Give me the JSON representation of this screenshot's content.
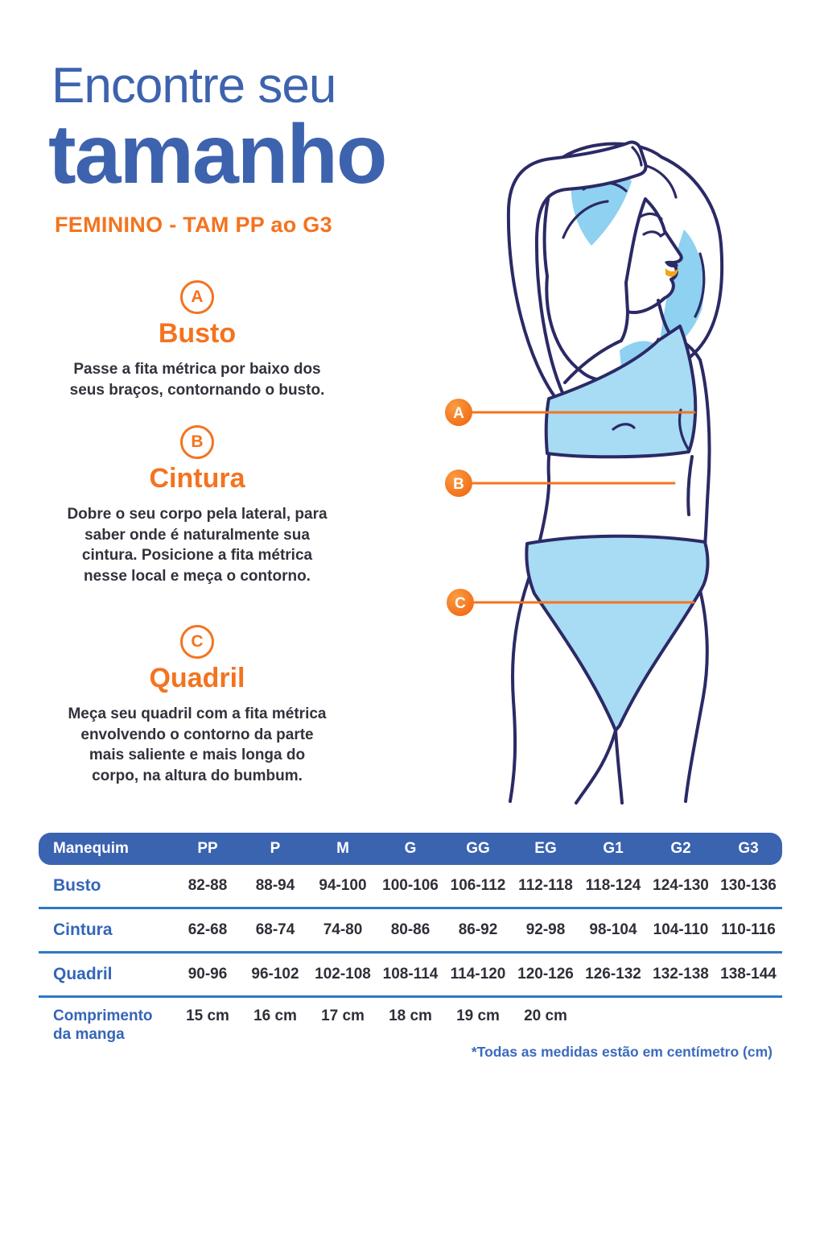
{
  "header": {
    "title_line1": "Encontre seu",
    "title_line2": "tamanho",
    "subtitle": "FEMININO - TAM PP ao G3"
  },
  "sections": [
    {
      "letter": "A",
      "title": "Busto",
      "description": "Passe a fita métrica por baixo dos seus braços, contornando o busto."
    },
    {
      "letter": "B",
      "title": "Cintura",
      "description": "Dobre o seu corpo pela lateral, para saber onde é naturalmente sua cintura. Posicione a fita métrica nesse local e meça o contorno."
    },
    {
      "letter": "C",
      "title": "Quadril",
      "description": "Meça seu quadril com a fita métrica envolvendo o contorno da parte mais saliente e mais longa do corpo, na altura do bumbum."
    }
  ],
  "diagram": {
    "markers": [
      {
        "letter": "A",
        "target": "busto"
      },
      {
        "letter": "B",
        "target": "cintura"
      },
      {
        "letter": "C",
        "target": "quadril"
      }
    ]
  },
  "table": {
    "columns": [
      "Manequim",
      "PP",
      "P",
      "M",
      "G",
      "GG",
      "EG",
      "G1",
      "G2",
      "G3"
    ],
    "rows": [
      {
        "label": "Busto",
        "values": [
          "82-88",
          "88-94",
          "94-100",
          "100-106",
          "106-112",
          "112-118",
          "118-124",
          "124-130",
          "130-136"
        ]
      },
      {
        "label": "Cintura",
        "values": [
          "62-68",
          "68-74",
          "74-80",
          "80-86",
          "86-92",
          "92-98",
          "98-104",
          "104-110",
          "110-116"
        ]
      },
      {
        "label": "Quadril",
        "values": [
          "90-96",
          "96-102",
          "102-108",
          "108-114",
          "114-120",
          "120-126",
          "126-132",
          "132-138",
          "138-144"
        ]
      },
      {
        "label": "Comprimento da manga",
        "values": [
          "15 cm",
          "16 cm",
          "17 cm",
          "18 cm",
          "19 cm",
          "20 cm",
          "",
          "",
          ""
        ]
      }
    ],
    "footnote": "*Todas as medidas estão em centímetro (cm)"
  },
  "colors": {
    "blue_title": "#3D63AE",
    "orange": "#F4731F",
    "table_header": "#3A63B0",
    "row_label": "#3465B8",
    "separator": "#2E79C5",
    "value_text": "#2F2F39",
    "footnote": "#3B6ABE",
    "navy": "#2B2A66",
    "light_blue": "#A7DCF4",
    "hair_blue": "#8ED1F1",
    "lip_orange": "#F0A61C"
  }
}
